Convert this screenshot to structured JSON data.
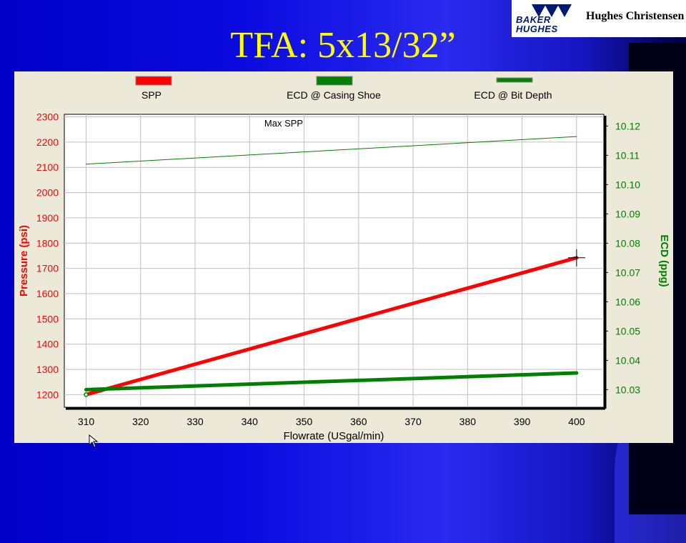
{
  "slide": {
    "title": "TFA: 5x13/32”"
  },
  "logo": {
    "word_top": "BAKER",
    "word_bottom": "HUGHES",
    "brand": "Hughes Christensen"
  },
  "colors": {
    "spp": "#ff0000",
    "ecd_shoe": "#008000",
    "ecd_bit": "#008000",
    "grid": "#c0c0c0"
  },
  "chart_data": {
    "type": "line",
    "legend": [
      "SPP",
      "ECD @ Casing Shoe",
      "ECD @ Bit Depth"
    ],
    "annotation": "Max SPP",
    "xlabel": "Flowrate (USgal/min)",
    "ylabel_left": "Pressure (psi)",
    "ylabel_right": "ECD (ppg)",
    "x_ticks": [
      "310",
      "320",
      "330",
      "340",
      "350",
      "360",
      "370",
      "380",
      "390",
      "400"
    ],
    "y_left_ticks": [
      "1200",
      "1300",
      "1400",
      "1500",
      "1600",
      "1700",
      "1800",
      "1900",
      "2000",
      "2100",
      "2200",
      "2300"
    ],
    "y_right_ticks": [
      "10.03",
      "10.04",
      "10.05",
      "10.06",
      "10.07",
      "10.08",
      "10.09",
      "10.10",
      "10.11",
      "10.12"
    ],
    "xlim": [
      306,
      405
    ],
    "ylim_left": [
      1150,
      2310
    ],
    "ylim_right": [
      10.024,
      10.124
    ],
    "series": [
      {
        "name": "SPP",
        "axis": "left",
        "x": [
          310,
          400
        ],
        "y": [
          1200,
          1742
        ]
      },
      {
        "name": "ECD @ Casing Shoe",
        "axis": "right",
        "x": [
          310,
          400
        ],
        "y": [
          10.03,
          10.0357
        ]
      },
      {
        "name": "ECD @ Bit Depth",
        "axis": "right",
        "x": [
          310,
          400
        ],
        "y": [
          10.107,
          10.1164
        ]
      }
    ]
  }
}
